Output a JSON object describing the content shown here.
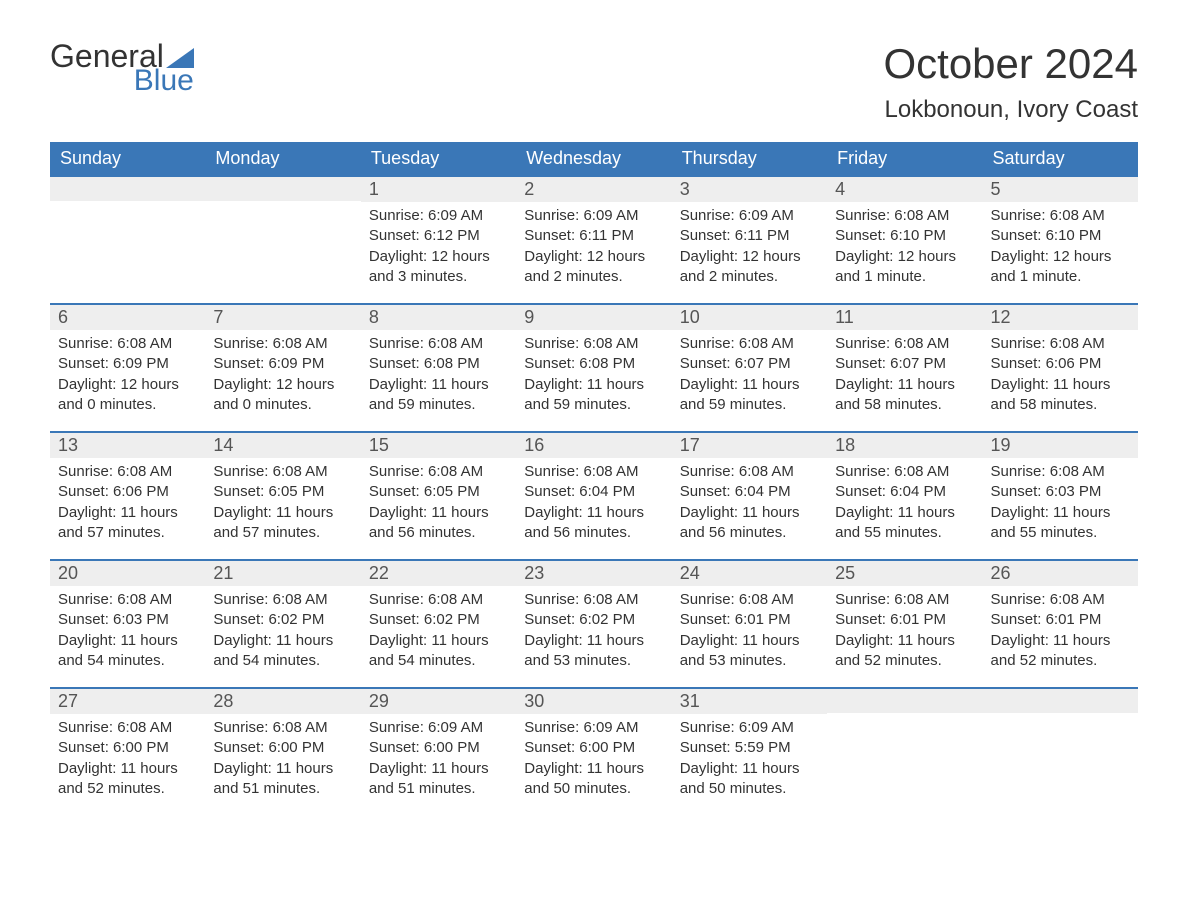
{
  "logo": {
    "text_general": "General",
    "text_blue": "Blue",
    "flag_color": "#3a77b7"
  },
  "title": {
    "month": "October 2024",
    "location": "Lokbonoun, Ivory Coast"
  },
  "colors": {
    "header_bg": "#3a77b7",
    "header_text": "#ffffff",
    "daynum_bg": "#eeeeee",
    "daynum_border": "#3a77b7",
    "body_text": "#333333",
    "background": "#ffffff"
  },
  "day_headers": [
    "Sunday",
    "Monday",
    "Tuesday",
    "Wednesday",
    "Thursday",
    "Friday",
    "Saturday"
  ],
  "weeks": [
    [
      null,
      null,
      {
        "n": "1",
        "sunrise": "Sunrise: 6:09 AM",
        "sunset": "Sunset: 6:12 PM",
        "daylight": "Daylight: 12 hours and 3 minutes."
      },
      {
        "n": "2",
        "sunrise": "Sunrise: 6:09 AM",
        "sunset": "Sunset: 6:11 PM",
        "daylight": "Daylight: 12 hours and 2 minutes."
      },
      {
        "n": "3",
        "sunrise": "Sunrise: 6:09 AM",
        "sunset": "Sunset: 6:11 PM",
        "daylight": "Daylight: 12 hours and 2 minutes."
      },
      {
        "n": "4",
        "sunrise": "Sunrise: 6:08 AM",
        "sunset": "Sunset: 6:10 PM",
        "daylight": "Daylight: 12 hours and 1 minute."
      },
      {
        "n": "5",
        "sunrise": "Sunrise: 6:08 AM",
        "sunset": "Sunset: 6:10 PM",
        "daylight": "Daylight: 12 hours and 1 minute."
      }
    ],
    [
      {
        "n": "6",
        "sunrise": "Sunrise: 6:08 AM",
        "sunset": "Sunset: 6:09 PM",
        "daylight": "Daylight: 12 hours and 0 minutes."
      },
      {
        "n": "7",
        "sunrise": "Sunrise: 6:08 AM",
        "sunset": "Sunset: 6:09 PM",
        "daylight": "Daylight: 12 hours and 0 minutes."
      },
      {
        "n": "8",
        "sunrise": "Sunrise: 6:08 AM",
        "sunset": "Sunset: 6:08 PM",
        "daylight": "Daylight: 11 hours and 59 minutes."
      },
      {
        "n": "9",
        "sunrise": "Sunrise: 6:08 AM",
        "sunset": "Sunset: 6:08 PM",
        "daylight": "Daylight: 11 hours and 59 minutes."
      },
      {
        "n": "10",
        "sunrise": "Sunrise: 6:08 AM",
        "sunset": "Sunset: 6:07 PM",
        "daylight": "Daylight: 11 hours and 59 minutes."
      },
      {
        "n": "11",
        "sunrise": "Sunrise: 6:08 AM",
        "sunset": "Sunset: 6:07 PM",
        "daylight": "Daylight: 11 hours and 58 minutes."
      },
      {
        "n": "12",
        "sunrise": "Sunrise: 6:08 AM",
        "sunset": "Sunset: 6:06 PM",
        "daylight": "Daylight: 11 hours and 58 minutes."
      }
    ],
    [
      {
        "n": "13",
        "sunrise": "Sunrise: 6:08 AM",
        "sunset": "Sunset: 6:06 PM",
        "daylight": "Daylight: 11 hours and 57 minutes."
      },
      {
        "n": "14",
        "sunrise": "Sunrise: 6:08 AM",
        "sunset": "Sunset: 6:05 PM",
        "daylight": "Daylight: 11 hours and 57 minutes."
      },
      {
        "n": "15",
        "sunrise": "Sunrise: 6:08 AM",
        "sunset": "Sunset: 6:05 PM",
        "daylight": "Daylight: 11 hours and 56 minutes."
      },
      {
        "n": "16",
        "sunrise": "Sunrise: 6:08 AM",
        "sunset": "Sunset: 6:04 PM",
        "daylight": "Daylight: 11 hours and 56 minutes."
      },
      {
        "n": "17",
        "sunrise": "Sunrise: 6:08 AM",
        "sunset": "Sunset: 6:04 PM",
        "daylight": "Daylight: 11 hours and 56 minutes."
      },
      {
        "n": "18",
        "sunrise": "Sunrise: 6:08 AM",
        "sunset": "Sunset: 6:04 PM",
        "daylight": "Daylight: 11 hours and 55 minutes."
      },
      {
        "n": "19",
        "sunrise": "Sunrise: 6:08 AM",
        "sunset": "Sunset: 6:03 PM",
        "daylight": "Daylight: 11 hours and 55 minutes."
      }
    ],
    [
      {
        "n": "20",
        "sunrise": "Sunrise: 6:08 AM",
        "sunset": "Sunset: 6:03 PM",
        "daylight": "Daylight: 11 hours and 54 minutes."
      },
      {
        "n": "21",
        "sunrise": "Sunrise: 6:08 AM",
        "sunset": "Sunset: 6:02 PM",
        "daylight": "Daylight: 11 hours and 54 minutes."
      },
      {
        "n": "22",
        "sunrise": "Sunrise: 6:08 AM",
        "sunset": "Sunset: 6:02 PM",
        "daylight": "Daylight: 11 hours and 54 minutes."
      },
      {
        "n": "23",
        "sunrise": "Sunrise: 6:08 AM",
        "sunset": "Sunset: 6:02 PM",
        "daylight": "Daylight: 11 hours and 53 minutes."
      },
      {
        "n": "24",
        "sunrise": "Sunrise: 6:08 AM",
        "sunset": "Sunset: 6:01 PM",
        "daylight": "Daylight: 11 hours and 53 minutes."
      },
      {
        "n": "25",
        "sunrise": "Sunrise: 6:08 AM",
        "sunset": "Sunset: 6:01 PM",
        "daylight": "Daylight: 11 hours and 52 minutes."
      },
      {
        "n": "26",
        "sunrise": "Sunrise: 6:08 AM",
        "sunset": "Sunset: 6:01 PM",
        "daylight": "Daylight: 11 hours and 52 minutes."
      }
    ],
    [
      {
        "n": "27",
        "sunrise": "Sunrise: 6:08 AM",
        "sunset": "Sunset: 6:00 PM",
        "daylight": "Daylight: 11 hours and 52 minutes."
      },
      {
        "n": "28",
        "sunrise": "Sunrise: 6:08 AM",
        "sunset": "Sunset: 6:00 PM",
        "daylight": "Daylight: 11 hours and 51 minutes."
      },
      {
        "n": "29",
        "sunrise": "Sunrise: 6:09 AM",
        "sunset": "Sunset: 6:00 PM",
        "daylight": "Daylight: 11 hours and 51 minutes."
      },
      {
        "n": "30",
        "sunrise": "Sunrise: 6:09 AM",
        "sunset": "Sunset: 6:00 PM",
        "daylight": "Daylight: 11 hours and 50 minutes."
      },
      {
        "n": "31",
        "sunrise": "Sunrise: 6:09 AM",
        "sunset": "Sunset: 5:59 PM",
        "daylight": "Daylight: 11 hours and 50 minutes."
      },
      null,
      null
    ]
  ]
}
